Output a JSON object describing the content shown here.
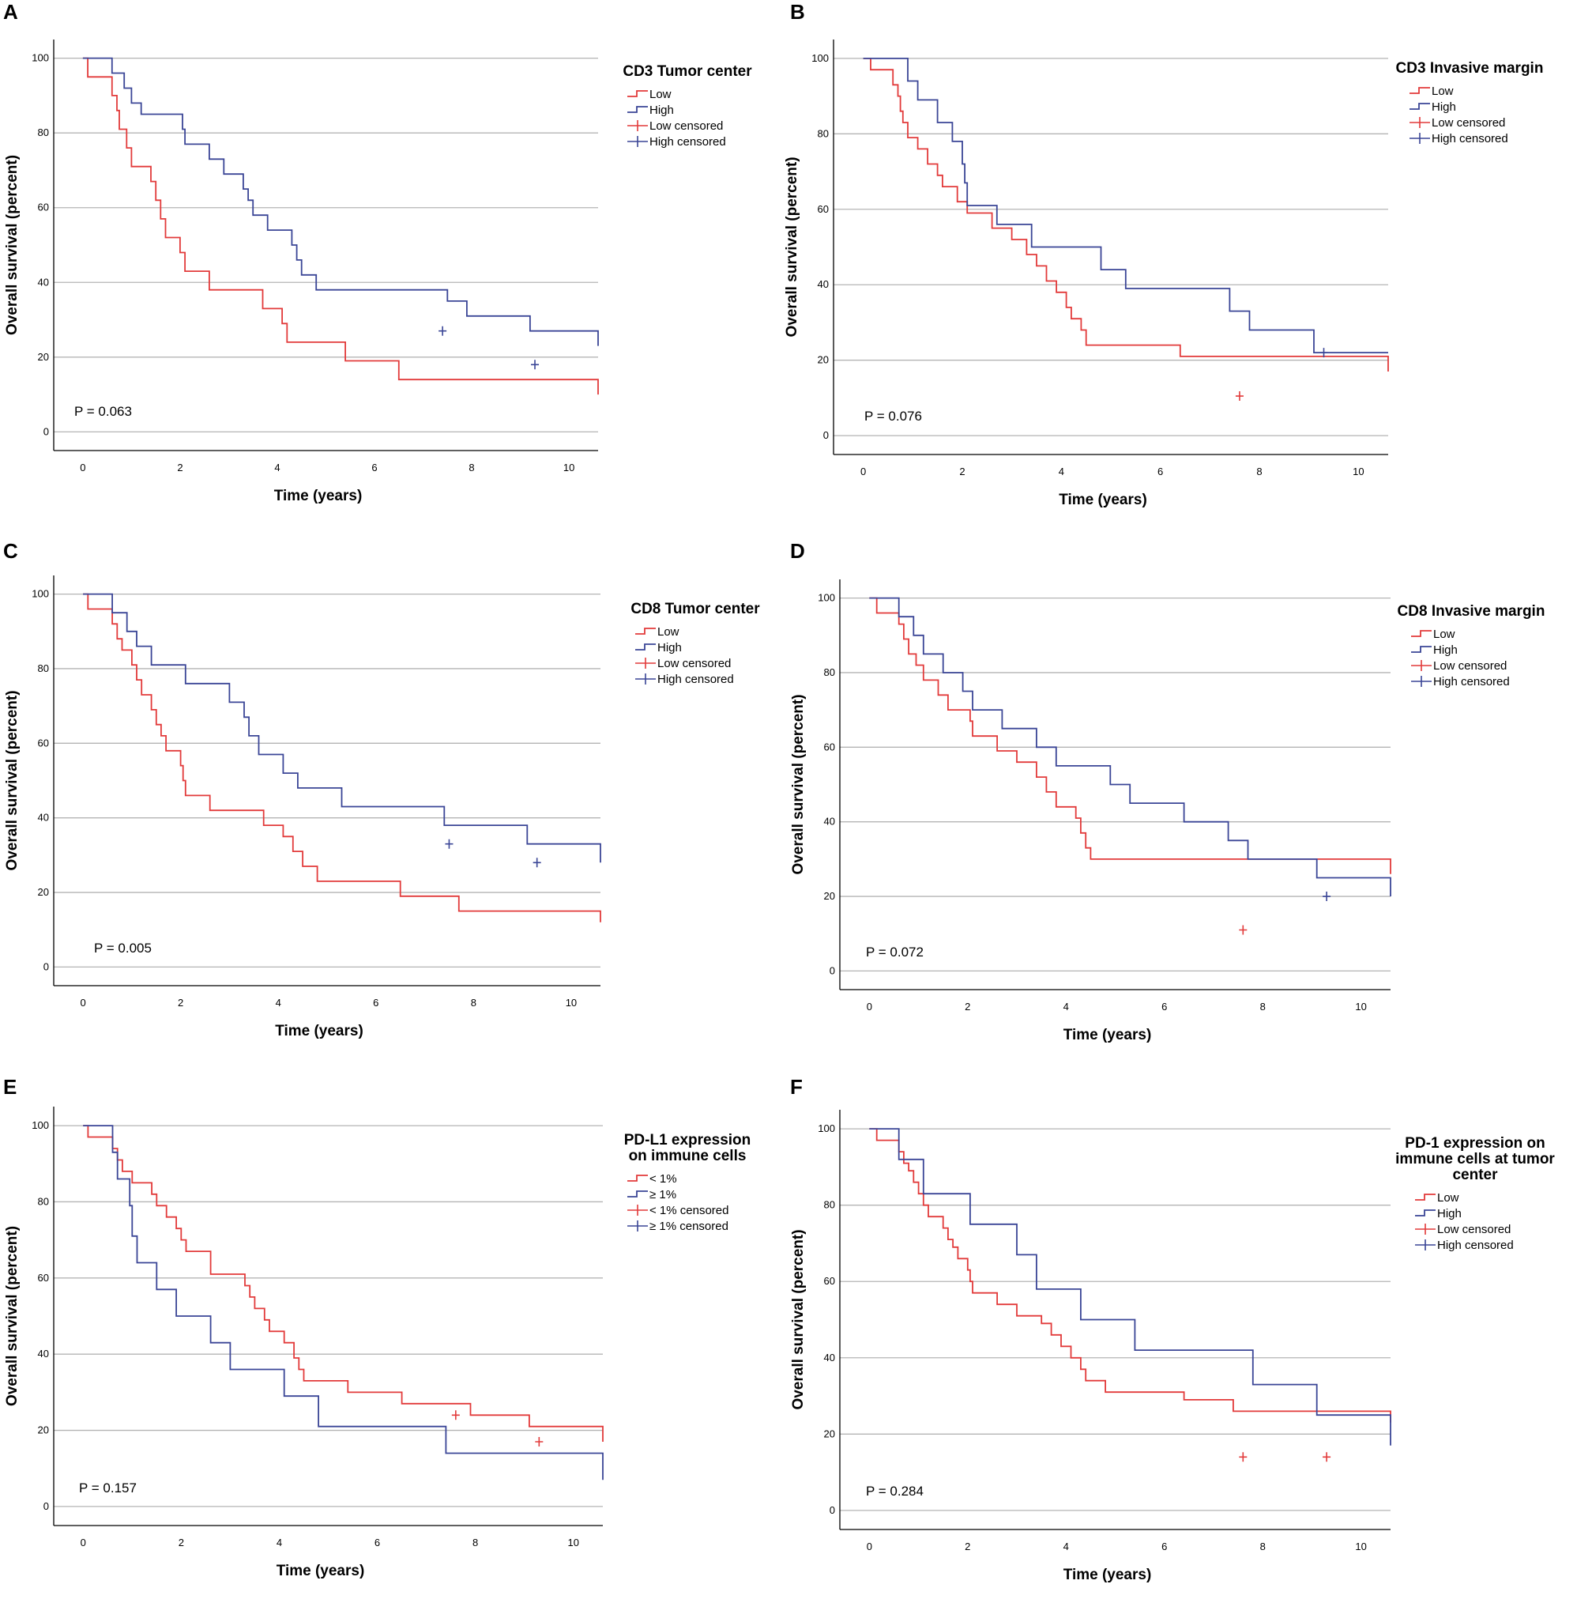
{
  "colors": {
    "low": "#e23a3a",
    "high": "#3a4596",
    "grid": "#b4b4b4",
    "frame": "#000000"
  },
  "chart_data": [
    {
      "panel": "A",
      "type": "line",
      "title": "CD3 Tumor center",
      "xlabel": "Time (years)",
      "ylabel": "Overall survival (percent)",
      "xlim": [
        -0.6,
        10.6
      ],
      "ylim": [
        -5,
        105
      ],
      "xticks": [
        "0",
        "2",
        "4",
        "6",
        "8",
        "10"
      ],
      "yticks": [
        "0",
        "20",
        "40",
        "60",
        "80",
        "100"
      ],
      "grid": "horizontal",
      "legend_position": "top-right",
      "legend": [
        "Low",
        "High",
        "Low censored",
        "High censored"
      ],
      "p_value": "P = 0.063",
      "series": [
        {
          "name": "Low",
          "color_key": "low",
          "x": [
            0,
            0.1,
            0.6,
            0.7,
            0.75,
            0.9,
            1.0,
            1.4,
            1.5,
            1.6,
            1.7,
            2.0,
            2.1,
            2.6,
            3.7,
            4.1,
            4.2,
            5.4,
            6.5,
            10.6
          ],
          "y": [
            100,
            95,
            90,
            86,
            81,
            76,
            71,
            67,
            62,
            57,
            52,
            48,
            43,
            38,
            33,
            29,
            24,
            19,
            14,
            10
          ],
          "censored": []
        },
        {
          "name": "High",
          "color_key": "high",
          "x": [
            0,
            0.6,
            0.85,
            1.0,
            1.2,
            2.05,
            2.1,
            2.6,
            2.9,
            3.3,
            3.4,
            3.5,
            3.8,
            4.3,
            4.4,
            4.5,
            4.8,
            7.5,
            7.9,
            9.2,
            10.6
          ],
          "y": [
            100,
            96,
            92,
            88,
            85,
            81,
            77,
            73,
            69,
            65,
            62,
            58,
            54,
            50,
            46,
            42,
            38,
            35,
            31,
            27,
            23
          ],
          "censored": [
            [
              7.4,
              27
            ],
            [
              9.3,
              18
            ]
          ]
        }
      ]
    },
    {
      "panel": "B",
      "type": "line",
      "title": "CD3 Invasive margin",
      "xlabel": "Time (years)",
      "ylabel": "Overall survival (percent)",
      "xlim": [
        -0.6,
        10.6
      ],
      "ylim": [
        -5,
        105
      ],
      "xticks": [
        "0",
        "2",
        "4",
        "6",
        "8",
        "10"
      ],
      "yticks": [
        "0",
        "20",
        "40",
        "60",
        "80",
        "100"
      ],
      "grid": "horizontal",
      "legend_position": "top-right",
      "legend": [
        "Low",
        "High",
        "Low censored",
        "High censored"
      ],
      "p_value": "P = 0.076",
      "series": [
        {
          "name": "Low",
          "color_key": "low",
          "x": [
            0,
            0.15,
            0.6,
            0.7,
            0.75,
            0.8,
            0.9,
            1.1,
            1.3,
            1.5,
            1.6,
            1.9,
            2.1,
            2.6,
            3.0,
            3.3,
            3.5,
            3.7,
            3.9,
            4.1,
            4.2,
            4.4,
            4.5,
            6.4,
            10.6
          ],
          "y": [
            100,
            97,
            93,
            90,
            86,
            83,
            79,
            76,
            72,
            69,
            66,
            62,
            59,
            55,
            52,
            48,
            45,
            41,
            38,
            34,
            31,
            28,
            24,
            21,
            17
          ],
          "censored": [
            [
              7.6,
              10.5
            ]
          ]
        }
      ]
    },
    {
      "panel": "C",
      "type": "line",
      "title": "CD8 Tumor center",
      "xlabel": "Time (years)",
      "ylabel": "Overall survival (percent)",
      "xlim": [
        -0.6,
        10.6
      ],
      "ylim": [
        -5,
        105
      ],
      "xticks": [
        "0",
        "2",
        "4",
        "6",
        "8",
        "10"
      ],
      "yticks": [
        "0",
        "20",
        "40",
        "60",
        "80",
        "100"
      ],
      "grid": "horizontal",
      "legend_position": "top-right",
      "legend": [
        "Low",
        "High",
        "Low censored",
        "High censored"
      ],
      "p_value": "P = 0.005",
      "series": [
        {
          "name": "Low",
          "color_key": "low",
          "x": [
            0,
            0.1,
            0.6,
            0.7,
            0.8,
            1.0,
            1.1,
            1.2,
            1.4,
            1.5,
            1.6,
            1.7,
            2.0,
            2.05,
            2.1,
            2.6,
            3.7,
            4.1,
            4.3,
            4.5,
            4.8,
            6.5,
            7.7,
            10.6
          ],
          "y": [
            100,
            96,
            92,
            88,
            85,
            81,
            77,
            73,
            69,
            65,
            62,
            58,
            54,
            50,
            46,
            42,
            38,
            35,
            31,
            27,
            23,
            19,
            15,
            12
          ],
          "censored": []
        },
        {
          "name": "High",
          "color_key": "high",
          "x": [
            0,
            0.6,
            0.9,
            1.1,
            1.4,
            2.1,
            3.0,
            3.3,
            3.4,
            3.6,
            4.1,
            4.4,
            5.3,
            7.4,
            9.1,
            10.6
          ],
          "y": [
            100,
            95,
            90,
            86,
            81,
            76,
            71,
            67,
            62,
            57,
            52,
            48,
            43,
            38,
            33,
            28
          ],
          "censored": [
            [
              7.5,
              33
            ],
            [
              9.3,
              28
            ]
          ]
        }
      ]
    },
    {
      "panel": "D",
      "type": "line",
      "title": "CD8 Invasive margin",
      "xlabel": "Time (years)",
      "ylabel": "Overall survival (percent)",
      "xlim": [
        -0.6,
        10.6
      ],
      "ylim": [
        -5,
        105
      ],
      "xticks": [
        "0",
        "2",
        "4",
        "6",
        "8",
        "10"
      ],
      "yticks": [
        "0",
        "20",
        "40",
        "60",
        "80",
        "100"
      ],
      "grid": "horizontal",
      "legend_position": "top-right",
      "legend": [
        "Low",
        "High",
        "Low censored",
        "High censored"
      ],
      "p_value": "P = 0.072",
      "series": [
        {
          "name": "Low",
          "color_key": "low",
          "x": [
            0,
            0.15,
            0.6,
            0.7,
            0.8,
            0.95,
            1.1,
            1.4,
            1.6,
            2.05,
            2.1,
            2.6,
            3.0,
            3.4,
            3.6,
            3.8,
            4.2,
            4.3,
            4.4,
            4.5,
            10.6
          ],
          "y": [
            100,
            96,
            93,
            89,
            85,
            82,
            78,
            74,
            70,
            67,
            63,
            59,
            56,
            52,
            48,
            44,
            41,
            37,
            33,
            30,
            26
          ],
          "censored": [
            [
              7.6,
              11
            ]
          ]
        }
      ]
    },
    {
      "panel": "E",
      "type": "line",
      "title": "PD-L1 expression on immune cells",
      "title_lines": [
        "PD-L1 expression",
        "on immune cells"
      ],
      "xlabel": "Time (years)",
      "ylabel": "Overall survival (percent)",
      "xlim": [
        -0.6,
        10.6
      ],
      "ylim": [
        -5,
        105
      ],
      "xticks": [
        "0",
        "2",
        "4",
        "6",
        "8",
        "10"
      ],
      "yticks": [
        "0",
        "20",
        "40",
        "60",
        "80",
        "100"
      ],
      "grid": "horizontal",
      "legend_position": "top-right",
      "legend": [
        "< 1%",
        "≥ 1%",
        "< 1% censored",
        "≥ 1% censored"
      ],
      "p_value": "P = 0.157",
      "series": [
        {
          "name": "< 1%",
          "color_key": "low",
          "x": [
            0,
            0.1,
            0.6,
            0.7,
            0.8,
            1.0,
            1.4,
            1.5,
            1.7,
            1.9,
            2.0,
            2.1,
            2.6,
            3.3,
            3.4,
            3.5,
            3.7,
            3.8,
            4.1,
            4.3,
            4.4,
            4.5,
            5.4,
            6.5,
            7.9,
            9.1,
            10.6
          ],
          "y": [
            100,
            97,
            94,
            91,
            88,
            85,
            82,
            79,
            76,
            73,
            70,
            67,
            61,
            58,
            55,
            52,
            49,
            46,
            43,
            39,
            36,
            33,
            30,
            27,
            24,
            21,
            17
          ],
          "censored": [
            [
              7.6,
              24
            ],
            [
              9.3,
              17
            ]
          ]
        }
      ]
    },
    {
      "panel": "F",
      "type": "line",
      "title": "PD-1 expression on immune cells at tumor center",
      "title_lines": [
        "PD-1 expression on",
        "immune cells at tumor",
        "center"
      ],
      "xlabel": "Time (years)",
      "ylabel": "Overall survival (percent)",
      "xlim": [
        -0.6,
        10.6
      ],
      "ylim": [
        -5,
        105
      ],
      "xticks": [
        "0",
        "2",
        "4",
        "6",
        "8",
        "10"
      ],
      "yticks": [
        "0",
        "20",
        "40",
        "60",
        "80",
        "100"
      ],
      "grid": "horizontal",
      "legend_position": "top-right",
      "legend": [
        "Low",
        "High",
        "Low censored",
        "High censored"
      ],
      "p_value": "P = 0.284",
      "series": [
        {
          "name": "Low",
          "color_key": "low",
          "x": [
            0,
            0.15,
            0.6,
            0.7,
            0.8,
            0.9,
            1.0,
            1.1,
            1.2,
            1.5,
            1.6,
            1.7,
            1.8,
            2.0,
            2.05,
            2.1,
            2.6,
            3.0,
            3.5,
            3.7,
            3.9,
            4.1,
            4.3,
            4.4,
            4.8,
            6.4,
            7.4,
            10.6
          ],
          "y": [
            100,
            97,
            94,
            91,
            89,
            86,
            83,
            80,
            77,
            74,
            71,
            69,
            66,
            63,
            60,
            57,
            54,
            51,
            49,
            46,
            43,
            40,
            37,
            34,
            31,
            29,
            26,
            23
          ],
          "censored": [
            [
              7.6,
              14
            ],
            [
              9.3,
              14
            ]
          ]
        }
      ]
    }
  ]
}
